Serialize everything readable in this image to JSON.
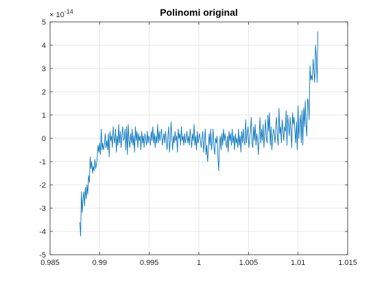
{
  "chart_data": {
    "type": "line",
    "title": "Polinomi original",
    "xlabel": "",
    "ylabel": "",
    "exponent_base": "× 10",
    "exponent_power": "-14",
    "xlim": [
      0.985,
      1.015
    ],
    "ylim": [
      -5,
      5
    ],
    "xticks": [
      0.985,
      0.99,
      0.995,
      1,
      1.005,
      1.01,
      1.015
    ],
    "xtick_labels": [
      "0.985",
      "0.99",
      "0.995",
      "1",
      "1.005",
      "1.01",
      "1.015"
    ],
    "yticks": [
      -5,
      -4,
      -3,
      -2,
      -1,
      0,
      1,
      2,
      3,
      4,
      5
    ],
    "ytick_labels": [
      "-5",
      "-4",
      "-3",
      "-2",
      "-1",
      "0",
      "1",
      "2",
      "3",
      "4",
      "5"
    ],
    "grid": true,
    "series": [
      {
        "color": "#0072bd",
        "x": [
          0.988,
          0.98808,
          0.98816,
          0.98824,
          0.98832,
          0.9884,
          0.98848,
          0.98856,
          0.98864,
          0.98872,
          0.9888,
          0.98888,
          0.98896,
          0.98904,
          0.98912,
          0.9892,
          0.98928,
          0.98936,
          0.98944,
          0.98952,
          0.9896,
          0.98968,
          0.98976,
          0.98984,
          0.98992,
          0.99,
          0.99008,
          0.99016,
          0.99024,
          0.99032,
          0.9904,
          0.99048,
          0.99056,
          0.99064,
          0.99072,
          0.9908,
          0.99088,
          0.99096,
          0.99104,
          0.99112,
          0.9912,
          0.99128,
          0.99136,
          0.99144,
          0.99152,
          0.9916,
          0.99168,
          0.99176,
          0.99184,
          0.99192,
          0.992,
          0.99208,
          0.99216,
          0.99224,
          0.99232,
          0.9924,
          0.99248,
          0.99256,
          0.99264,
          0.99272,
          0.9928,
          0.99288,
          0.99296,
          0.99304,
          0.99312,
          0.9932,
          0.99328,
          0.99336,
          0.99344,
          0.99352,
          0.9936,
          0.99368,
          0.99376,
          0.99384,
          0.99392,
          0.994,
          0.99408,
          0.99416,
          0.99424,
          0.99432,
          0.9944,
          0.99448,
          0.99456,
          0.99464,
          0.99472,
          0.9948,
          0.99488,
          0.99496,
          0.99504,
          0.99512,
          0.9952,
          0.99528,
          0.99536,
          0.99544,
          0.99552,
          0.9956,
          0.99568,
          0.99576,
          0.99584,
          0.99592,
          0.996,
          0.99608,
          0.99616,
          0.99624,
          0.99632,
          0.9964,
          0.99648,
          0.99656,
          0.99664,
          0.99672,
          0.9968,
          0.99688,
          0.99696,
          0.99704,
          0.99712,
          0.9972,
          0.99728,
          0.99736,
          0.99744,
          0.99752,
          0.9976,
          0.99768,
          0.99776,
          0.99784,
          0.99792,
          0.998,
          0.99808,
          0.99816,
          0.99824,
          0.99832,
          0.9984,
          0.99848,
          0.99856,
          0.99864,
          0.99872,
          0.9988,
          0.99888,
          0.99896,
          0.99904,
          0.99912,
          0.9992,
          0.99928,
          0.99936,
          0.99944,
          0.99952,
          0.9996,
          0.99968,
          0.99976,
          0.99984,
          0.99992,
          1.0,
          1.00008,
          1.00016,
          1.00024,
          1.00032,
          1.0004,
          1.00048,
          1.00056,
          1.00064,
          1.00072,
          1.0008,
          1.00088,
          1.00096,
          1.00104,
          1.00112,
          1.0012,
          1.00128,
          1.00136,
          1.00144,
          1.00152,
          1.0016,
          1.00168,
          1.00176,
          1.00184,
          1.00192,
          1.002,
          1.00208,
          1.00216,
          1.00224,
          1.00232,
          1.0024,
          1.00248,
          1.00256,
          1.00264,
          1.00272,
          1.0028,
          1.00288,
          1.00296,
          1.00304,
          1.00312,
          1.0032,
          1.00328,
          1.00336,
          1.00344,
          1.00352,
          1.0036,
          1.00368,
          1.00376,
          1.00384,
          1.00392,
          1.004,
          1.00408,
          1.00416,
          1.00424,
          1.00432,
          1.0044,
          1.00448,
          1.00456,
          1.00464,
          1.00472,
          1.0048,
          1.00488,
          1.00496,
          1.00504,
          1.00512,
          1.0052,
          1.00528,
          1.00536,
          1.00544,
          1.00552,
          1.0056,
          1.00568,
          1.00576,
          1.00584,
          1.00592,
          1.006,
          1.00608,
          1.00616,
          1.00624,
          1.00632,
          1.0064,
          1.00648,
          1.00656,
          1.00664,
          1.00672,
          1.0068,
          1.00688,
          1.00696,
          1.00704,
          1.00712,
          1.0072,
          1.00728,
          1.00736,
          1.00744,
          1.00752,
          1.0076,
          1.00768,
          1.00776,
          1.00784,
          1.00792,
          1.008,
          1.00808,
          1.00816,
          1.00824,
          1.00832,
          1.0084,
          1.00848,
          1.00856,
          1.00864,
          1.00872,
          1.0088,
          1.00888,
          1.00896,
          1.00904,
          1.00912,
          1.0092,
          1.00928,
          1.00936,
          1.00944,
          1.00952,
          1.0096,
          1.00968,
          1.00976,
          1.00984,
          1.00992,
          1.01,
          1.01008,
          1.01016,
          1.01024,
          1.01032,
          1.0104,
          1.01048,
          1.01056,
          1.01064,
          1.01072,
          1.0108,
          1.01088,
          1.01096,
          1.01104,
          1.01112,
          1.0112,
          1.01128,
          1.01136,
          1.01144,
          1.01152,
          1.0116,
          1.01168,
          1.01176,
          1.01184,
          1.01192,
          1.012
        ],
        "y": [
          -3.6,
          -4.2,
          -2.3,
          -3.2,
          -2.6,
          -2.3,
          -2.9,
          -2.1,
          -2.6,
          -2.0,
          -2.4,
          -1.6,
          -1.9,
          -0.8,
          -1.3,
          -1.0,
          -1.5,
          -1.2,
          -1.4,
          -0.9,
          -1.3,
          -1.1,
          -0.8,
          -0.3,
          -0.6,
          -0.2,
          -0.7,
          0.4,
          -0.5,
          -0.2,
          -0.5,
          -0.3,
          0.2,
          -0.4,
          -0.1,
          -0.5,
          0.2,
          -0.8,
          0.3,
          -0.1,
          0.1,
          -0.4,
          0.5,
          0.0,
          -0.2,
          0.4,
          -0.6,
          0.1,
          -0.3,
          0.6,
          -0.2,
          0.3,
          -0.4,
          0.1,
          0.5,
          -0.1,
          0.0,
          0.4,
          -0.5,
          0.5,
          -0.7,
          0.6,
          -0.1,
          -0.4,
          0.2,
          -0.2,
          0.4,
          -0.3,
          0.1,
          -0.6,
          0.5,
          -0.1,
          0.3,
          -0.4,
          0.2,
          -0.1,
          0.1,
          -0.5,
          0.3,
          -0.2,
          0.1,
          -0.4,
          0.2,
          0.0,
          -0.3,
          0.3,
          -0.2,
          0.1,
          0.0,
          -0.3,
          0.3,
          -0.1,
          0.5,
          -0.2,
          0.2,
          -0.4,
          0.1,
          -0.2,
          0.6,
          -0.2,
          0.3,
          -0.1,
          0.2,
          0.4,
          -0.3,
          0.0,
          0.2,
          -0.2,
          0.3,
          -0.1,
          -0.5,
          0.1,
          0.5,
          -0.6,
          -0.1,
          0.7,
          0.0,
          -0.5,
          0.1,
          -0.2,
          0.3,
          -0.1,
          0.1,
          -0.6,
          0.4,
          0.0,
          0.2,
          -0.3,
          0.5,
          -0.1,
          0.1,
          -0.3,
          0.2,
          -0.2,
          0.0,
          0.3,
          -0.2,
          0.1,
          -0.3,
          0.4,
          0.0,
          -0.4,
          0.2,
          -0.1,
          0.6,
          -0.3,
          0.1,
          -0.5,
          0.3,
          -0.2,
          0.0,
          0.2,
          -0.1,
          -0.4,
          0.0,
          0.3,
          -0.6,
          -0.2,
          0.4,
          -0.7,
          -0.3,
          -1.0,
          -0.5,
          0.2,
          -0.3,
          0.4,
          -0.5,
          -0.1,
          0.4,
          -0.4,
          -0.7,
          0.0,
          -0.2,
          0.1,
          -0.8,
          -1.4,
          -0.3,
          0.1,
          -0.5,
          0.2,
          -0.3,
          0.4,
          -0.1,
          0.2,
          -0.2,
          -0.4,
          0.1,
          -0.6,
          0.3,
          -0.1,
          0.2,
          -0.3,
          0.4,
          -0.2,
          0.1,
          -0.5,
          0.2,
          -0.2,
          0.0,
          -0.4,
          0.4,
          -0.3,
          0.1,
          -0.6,
          0.3,
          -0.2,
          0.4,
          -0.1,
          -0.3,
          0.8,
          -0.2,
          0.2,
          0.5,
          -0.4,
          0.0,
          0.3,
          0.9,
          -0.2,
          -0.4,
          0.5,
          -0.1,
          0.6,
          -0.3,
          0.2,
          -0.1,
          -0.7,
          0.1,
          0.9,
          -0.2,
          0.4,
          -0.1,
          0.6,
          -0.4,
          0.2,
          0.8,
          0.0,
          -0.2,
          1.0,
          0.3,
          1.1,
          -0.3,
          0.5,
          -0.5,
          0.1,
          0.4,
          0.2,
          -0.2,
          0.6,
          0.9,
          0.0,
          -0.3,
          1.3,
          0.2,
          0.5,
          -0.2,
          0.8,
          0.4,
          -0.1,
          0.5,
          0.3,
          1.2,
          -0.3,
          1.0,
          0.5,
          0.1,
          0.9,
          0.4,
          -0.4,
          1.1,
          0.6,
          0.9,
          0.3,
          -0.2,
          0.7,
          -0.5,
          1.4,
          0.0,
          0.6,
          1.0,
          -0.2,
          1.2,
          -0.3,
          1.3,
          0.5,
          1.6,
          0.6,
          0.1,
          1.7,
          1.6,
          0.8,
          3.1,
          2.5,
          2.7,
          2.5,
          3.4,
          2.9,
          2.4,
          4.0,
          3.5,
          2.4,
          4.6
        ]
      }
    ]
  }
}
